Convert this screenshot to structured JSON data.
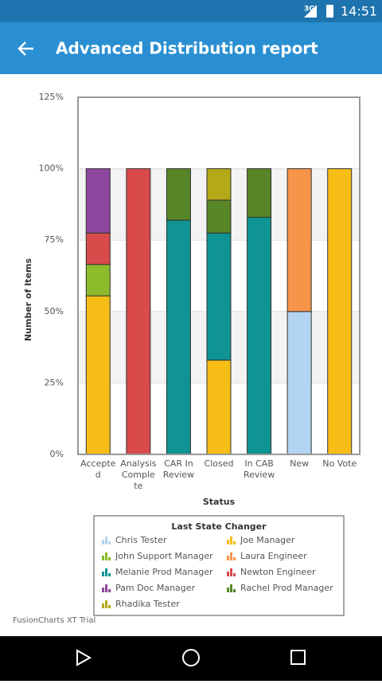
{
  "status_bar": {
    "network": "3G",
    "time": "14:51"
  },
  "app_bar": {
    "title": "Advanced Distribution report"
  },
  "chart_data": {
    "type": "stacked_bar",
    "x_label": "Status",
    "y_label": "Number of Items",
    "categories": [
      "Accepted",
      "Analysis Complete",
      "CAR In Review",
      "Closed",
      "In CAB Review",
      "New",
      "No Vote"
    ],
    "series": [
      {
        "name": "Chris Tester",
        "color": "#b3d4f2",
        "values": [
          0,
          0,
          0,
          0,
          0,
          50,
          0
        ]
      },
      {
        "name": "Joe Manager",
        "color": "#f6bd16",
        "values": [
          55.5,
          0,
          0,
          33,
          0,
          0,
          100
        ]
      },
      {
        "name": "John Support Manager",
        "color": "#8cbb2c",
        "values": [
          11,
          0,
          0,
          0,
          0,
          0,
          0
        ]
      },
      {
        "name": "Laura Engineer",
        "color": "#f8934a",
        "values": [
          0,
          0,
          0,
          0,
          0,
          50,
          0
        ]
      },
      {
        "name": "Melanie Prod Manager",
        "color": "#0f9393",
        "values": [
          0,
          0,
          82,
          44.5,
          83,
          0,
          0
        ]
      },
      {
        "name": "Newton Engineer",
        "color": "#d94a4a",
        "values": [
          11,
          100,
          0,
          0,
          0,
          0,
          0
        ]
      },
      {
        "name": "Pam Doc Manager",
        "color": "#8e479e",
        "values": [
          22.5,
          0,
          0,
          0,
          0,
          0,
          0
        ]
      },
      {
        "name": "Rachel Prod Manager",
        "color": "#588527",
        "values": [
          0,
          0,
          18,
          11.5,
          17,
          0,
          0
        ]
      },
      {
        "name": "Rhadika Tester",
        "color": "#b4a918",
        "values": [
          0,
          0,
          0,
          11,
          0,
          0,
          0
        ]
      }
    ],
    "ylim": [
      0,
      125
    ],
    "yticks": [
      {
        "value": 0,
        "label": "0%"
      },
      {
        "value": 25,
        "label": "25%"
      },
      {
        "value": 50,
        "label": "50%"
      },
      {
        "value": 75,
        "label": "75%"
      },
      {
        "value": 100,
        "label": "100%"
      },
      {
        "value": 125,
        "label": "125%"
      }
    ],
    "grid": true,
    "legend": {
      "title": "Last State Changer",
      "position": "bottom"
    }
  },
  "watermark": "FusionCharts XT Trial"
}
